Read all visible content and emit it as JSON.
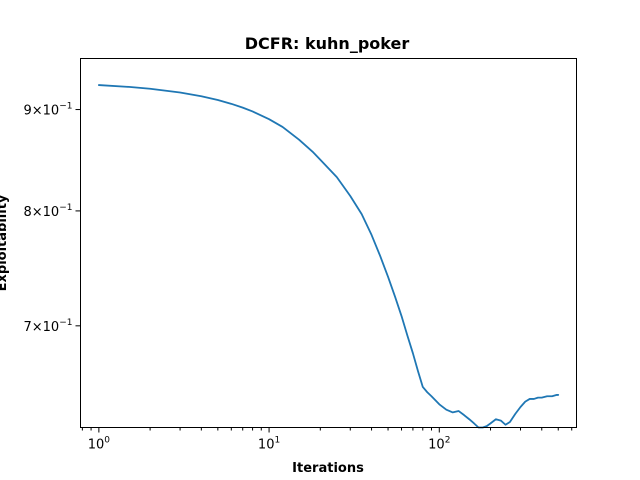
{
  "chart_data": {
    "type": "line",
    "title": "DCFR: kuhn_poker",
    "xlabel": "Iterations",
    "ylabel": "Exploitability",
    "xscale": "log",
    "yscale": "log",
    "xlim": [
      0.78,
      640
    ],
    "ylim": [
      0.622,
      0.955
    ],
    "grid": false,
    "x_ticks": [
      {
        "value": 1,
        "base": "10",
        "exp": "0"
      },
      {
        "value": 10,
        "base": "10",
        "exp": "1"
      },
      {
        "value": 100,
        "base": "10",
        "exp": "2"
      }
    ],
    "y_ticks": [
      {
        "value": 0.9,
        "mant": "9",
        "base": "10",
        "exp": "−1"
      },
      {
        "value": 0.8,
        "mant": "8",
        "base": "10",
        "exp": "−1"
      },
      {
        "value": 0.7,
        "mant": "7",
        "base": "10",
        "exp": "−1"
      }
    ],
    "series": [
      {
        "color": "#1f77b4",
        "x": [
          1,
          1.5,
          2,
          3,
          4,
          5,
          6,
          7,
          8,
          10,
          12,
          15,
          18,
          20,
          25,
          30,
          35,
          40,
          45,
          50,
          55,
          60,
          65,
          70,
          75,
          80,
          85,
          90,
          100,
          110,
          120,
          130,
          140,
          150,
          160,
          170,
          180,
          190,
          200,
          215,
          230,
          245,
          260,
          280,
          300,
          320,
          340,
          360,
          380,
          400,
          430,
          460,
          490,
          500
        ],
        "y": [
          0.926,
          0.924,
          0.922,
          0.918,
          0.914,
          0.91,
          0.906,
          0.902,
          0.898,
          0.89,
          0.882,
          0.869,
          0.857,
          0.849,
          0.832,
          0.814,
          0.797,
          0.778,
          0.759,
          0.741,
          0.724,
          0.708,
          0.692,
          0.678,
          0.664,
          0.652,
          0.648,
          0.645,
          0.639,
          0.635,
          0.633,
          0.634,
          0.631,
          0.628,
          0.625,
          0.622,
          0.622,
          0.623,
          0.625,
          0.628,
          0.627,
          0.624,
          0.626,
          0.632,
          0.637,
          0.641,
          0.643,
          0.643,
          0.644,
          0.644,
          0.645,
          0.645,
          0.646,
          0.646
        ]
      }
    ]
  }
}
